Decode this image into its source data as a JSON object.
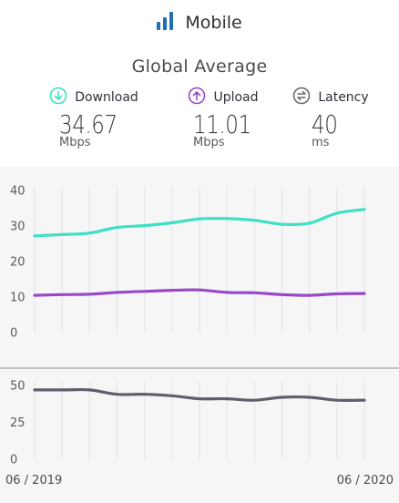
{
  "header": {
    "title": "Mobile",
    "icon": "signal-bars-icon",
    "accent": "#1f6fb2"
  },
  "subtitle": "Global Average",
  "metrics": [
    {
      "label": "Download",
      "value": "34.67",
      "unit": "Mbps",
      "icon": "download-arrow-icon",
      "color": "#3de0c3"
    },
    {
      "label": "Upload",
      "value": "11.01",
      "unit": "Mbps",
      "icon": "upload-arrow-icon",
      "color": "#9a48c9"
    },
    {
      "label": "Latency",
      "value": "40",
      "unit": "ms",
      "icon": "latency-arrows-icon",
      "color": "#5f5f6a"
    }
  ],
  "chart_data": [
    {
      "type": "line",
      "x": [
        "06/2019",
        "07/2019",
        "08/2019",
        "09/2019",
        "10/2019",
        "11/2019",
        "12/2019",
        "01/2020",
        "02/2020",
        "03/2020",
        "04/2020",
        "05/2020",
        "06/2020"
      ],
      "ylim": [
        0,
        40
      ],
      "yticks": [
        "40",
        "30",
        "20",
        "10",
        "0"
      ],
      "grid": true,
      "series": [
        {
          "name": "Download",
          "color": "#3de0c3",
          "values": [
            27.2,
            27.6,
            28.0,
            29.6,
            30.1,
            30.9,
            32.0,
            32.1,
            31.6,
            30.5,
            30.8,
            33.6,
            34.67
          ]
        },
        {
          "name": "Upload",
          "color": "#9a48c9",
          "values": [
            10.5,
            10.7,
            10.8,
            11.3,
            11.6,
            11.9,
            12.0,
            11.3,
            11.2,
            10.7,
            10.5,
            10.9,
            11.01
          ]
        }
      ]
    },
    {
      "type": "line",
      "x": [
        "06/2019",
        "07/2019",
        "08/2019",
        "09/2019",
        "10/2019",
        "11/2019",
        "12/2019",
        "01/2020",
        "02/2020",
        "03/2020",
        "04/2020",
        "05/2020",
        "06/2020"
      ],
      "ylim": [
        0,
        50
      ],
      "yticks": [
        "50",
        "25",
        "0"
      ],
      "grid": true,
      "series": [
        {
          "name": "Latency",
          "color": "#5f5f6a",
          "values": [
            47,
            47,
            47,
            44,
            44,
            43,
            41,
            41,
            40,
            42,
            42,
            40,
            40
          ]
        }
      ]
    }
  ],
  "x_axis": {
    "start": "06 / 2019",
    "end": "06 / 2020"
  }
}
